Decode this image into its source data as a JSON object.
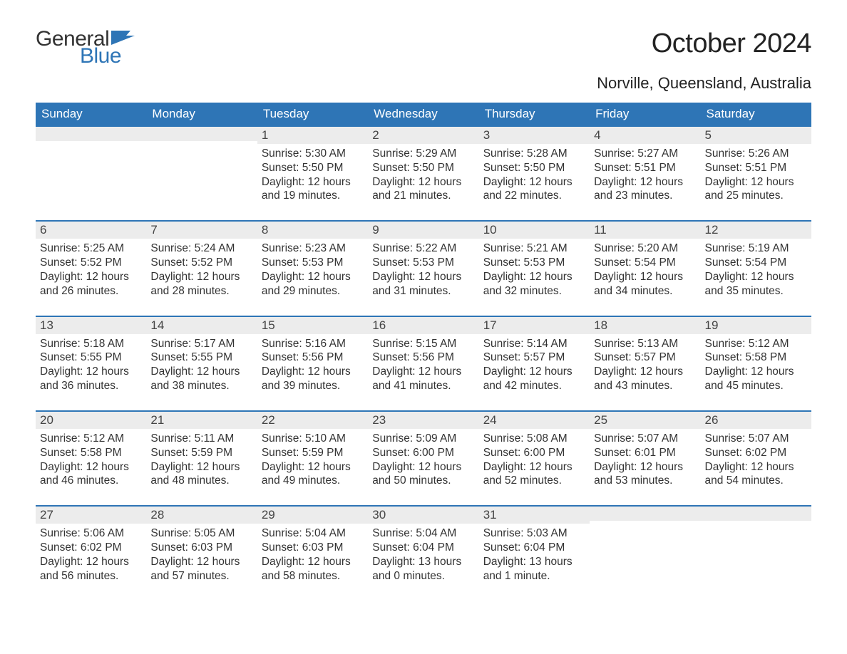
{
  "logo": {
    "word1": "General",
    "word2": "Blue",
    "flag_color": "#2e75b6"
  },
  "title": "October 2024",
  "location": "Norville, Queensland, Australia",
  "colors": {
    "header_bg": "#2e75b6",
    "header_text": "#ffffff",
    "daynum_bg": "#ececec",
    "body_text": "#333333",
    "page_bg": "#ffffff"
  },
  "daysOfWeek": [
    "Sunday",
    "Monday",
    "Tuesday",
    "Wednesday",
    "Thursday",
    "Friday",
    "Saturday"
  ],
  "labels": {
    "sunrise": "Sunrise:",
    "sunset": "Sunset:",
    "daylight": "Daylight:",
    "hours": "hours",
    "and": "and"
  },
  "weeks": [
    [
      null,
      null,
      {
        "n": "1",
        "sunrise": "5:30 AM",
        "sunset": "5:50 PM",
        "dl_h": "12",
        "dl_m": "19 minutes."
      },
      {
        "n": "2",
        "sunrise": "5:29 AM",
        "sunset": "5:50 PM",
        "dl_h": "12",
        "dl_m": "21 minutes."
      },
      {
        "n": "3",
        "sunrise": "5:28 AM",
        "sunset": "5:50 PM",
        "dl_h": "12",
        "dl_m": "22 minutes."
      },
      {
        "n": "4",
        "sunrise": "5:27 AM",
        "sunset": "5:51 PM",
        "dl_h": "12",
        "dl_m": "23 minutes."
      },
      {
        "n": "5",
        "sunrise": "5:26 AM",
        "sunset": "5:51 PM",
        "dl_h": "12",
        "dl_m": "25 minutes."
      }
    ],
    [
      {
        "n": "6",
        "sunrise": "5:25 AM",
        "sunset": "5:52 PM",
        "dl_h": "12",
        "dl_m": "26 minutes."
      },
      {
        "n": "7",
        "sunrise": "5:24 AM",
        "sunset": "5:52 PM",
        "dl_h": "12",
        "dl_m": "28 minutes."
      },
      {
        "n": "8",
        "sunrise": "5:23 AM",
        "sunset": "5:53 PM",
        "dl_h": "12",
        "dl_m": "29 minutes."
      },
      {
        "n": "9",
        "sunrise": "5:22 AM",
        "sunset": "5:53 PM",
        "dl_h": "12",
        "dl_m": "31 minutes."
      },
      {
        "n": "10",
        "sunrise": "5:21 AM",
        "sunset": "5:53 PM",
        "dl_h": "12",
        "dl_m": "32 minutes."
      },
      {
        "n": "11",
        "sunrise": "5:20 AM",
        "sunset": "5:54 PM",
        "dl_h": "12",
        "dl_m": "34 minutes."
      },
      {
        "n": "12",
        "sunrise": "5:19 AM",
        "sunset": "5:54 PM",
        "dl_h": "12",
        "dl_m": "35 minutes."
      }
    ],
    [
      {
        "n": "13",
        "sunrise": "5:18 AM",
        "sunset": "5:55 PM",
        "dl_h": "12",
        "dl_m": "36 minutes."
      },
      {
        "n": "14",
        "sunrise": "5:17 AM",
        "sunset": "5:55 PM",
        "dl_h": "12",
        "dl_m": "38 minutes."
      },
      {
        "n": "15",
        "sunrise": "5:16 AM",
        "sunset": "5:56 PM",
        "dl_h": "12",
        "dl_m": "39 minutes."
      },
      {
        "n": "16",
        "sunrise": "5:15 AM",
        "sunset": "5:56 PM",
        "dl_h": "12",
        "dl_m": "41 minutes."
      },
      {
        "n": "17",
        "sunrise": "5:14 AM",
        "sunset": "5:57 PM",
        "dl_h": "12",
        "dl_m": "42 minutes."
      },
      {
        "n": "18",
        "sunrise": "5:13 AM",
        "sunset": "5:57 PM",
        "dl_h": "12",
        "dl_m": "43 minutes."
      },
      {
        "n": "19",
        "sunrise": "5:12 AM",
        "sunset": "5:58 PM",
        "dl_h": "12",
        "dl_m": "45 minutes."
      }
    ],
    [
      {
        "n": "20",
        "sunrise": "5:12 AM",
        "sunset": "5:58 PM",
        "dl_h": "12",
        "dl_m": "46 minutes."
      },
      {
        "n": "21",
        "sunrise": "5:11 AM",
        "sunset": "5:59 PM",
        "dl_h": "12",
        "dl_m": "48 minutes."
      },
      {
        "n": "22",
        "sunrise": "5:10 AM",
        "sunset": "5:59 PM",
        "dl_h": "12",
        "dl_m": "49 minutes."
      },
      {
        "n": "23",
        "sunrise": "5:09 AM",
        "sunset": "6:00 PM",
        "dl_h": "12",
        "dl_m": "50 minutes."
      },
      {
        "n": "24",
        "sunrise": "5:08 AM",
        "sunset": "6:00 PM",
        "dl_h": "12",
        "dl_m": "52 minutes."
      },
      {
        "n": "25",
        "sunrise": "5:07 AM",
        "sunset": "6:01 PM",
        "dl_h": "12",
        "dl_m": "53 minutes."
      },
      {
        "n": "26",
        "sunrise": "5:07 AM",
        "sunset": "6:02 PM",
        "dl_h": "12",
        "dl_m": "54 minutes."
      }
    ],
    [
      {
        "n": "27",
        "sunrise": "5:06 AM",
        "sunset": "6:02 PM",
        "dl_h": "12",
        "dl_m": "56 minutes."
      },
      {
        "n": "28",
        "sunrise": "5:05 AM",
        "sunset": "6:03 PM",
        "dl_h": "12",
        "dl_m": "57 minutes."
      },
      {
        "n": "29",
        "sunrise": "5:04 AM",
        "sunset": "6:03 PM",
        "dl_h": "12",
        "dl_m": "58 minutes."
      },
      {
        "n": "30",
        "sunrise": "5:04 AM",
        "sunset": "6:04 PM",
        "dl_h": "13",
        "dl_m": "0 minutes."
      },
      {
        "n": "31",
        "sunrise": "5:03 AM",
        "sunset": "6:04 PM",
        "dl_h": "13",
        "dl_m": "1 minute."
      },
      null,
      null
    ]
  ]
}
